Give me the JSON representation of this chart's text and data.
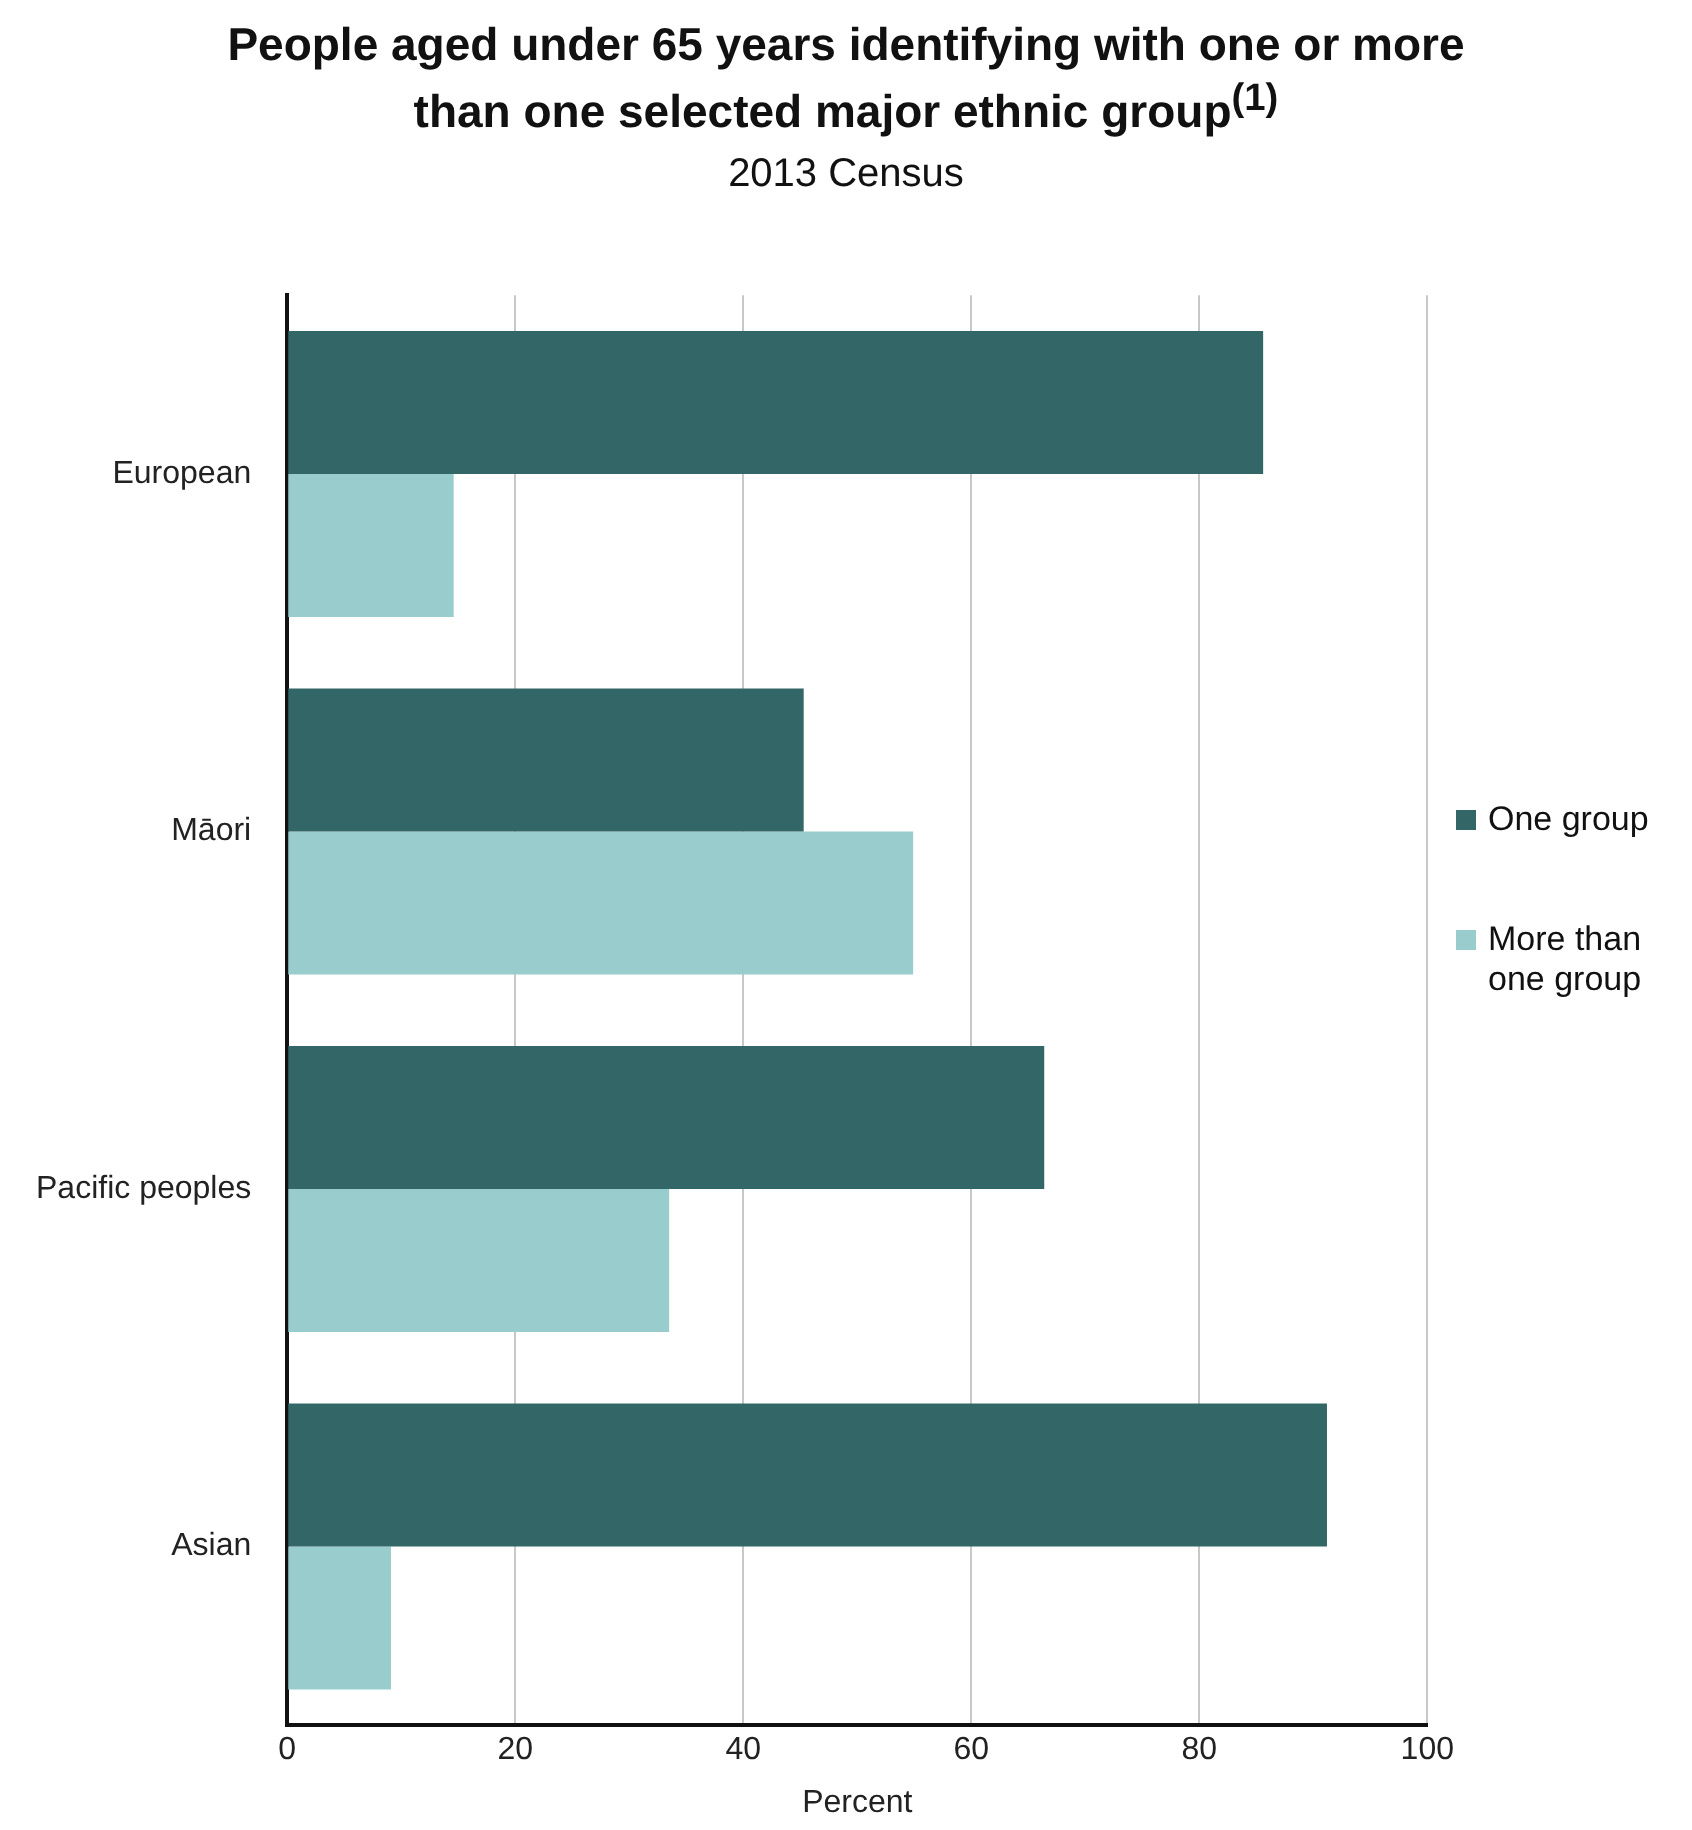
{
  "chart_data": {
    "type": "bar",
    "orientation": "horizontal",
    "title": "People aged under 65 years identifying with one or more than one selected major ethnic group$^{(1)}$",
    "subtitle": "2013 Census",
    "xlabel": "Percent",
    "categories": [
      "European",
      "Māori",
      "Pacific peoples",
      "Asian"
    ],
    "series": [
      {
        "name": "One group",
        "color": "#336666",
        "values": [
          85.6,
          45.3,
          66.4,
          91.2
        ]
      },
      {
        "name": "More than one group",
        "color": "#99cccc",
        "values": [
          14.6,
          54.9,
          33.5,
          9.1
        ]
      }
    ],
    "xlim": [
      0,
      100
    ],
    "xticks": [
      0,
      20,
      40,
      60,
      80,
      100
    ],
    "grid": "x",
    "legend": "right"
  }
}
